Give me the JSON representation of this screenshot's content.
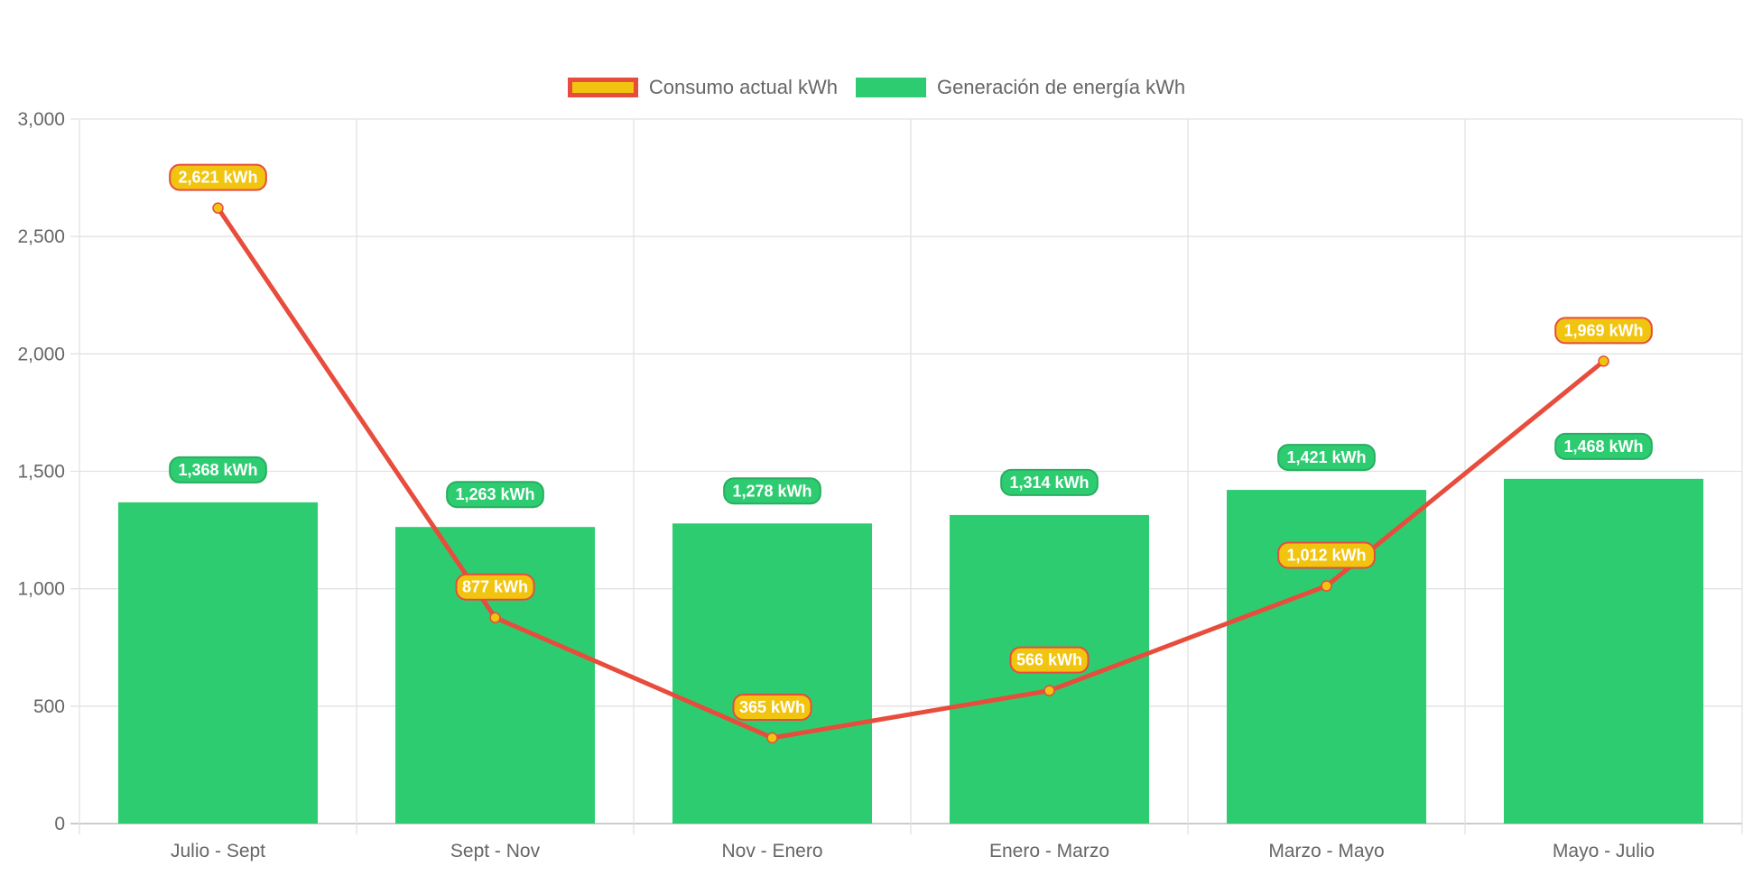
{
  "chart_data": {
    "type": "bar",
    "categories": [
      "Julio - Sept",
      "Sept - Nov",
      "Nov - Enero",
      "Enero - Marzo",
      "Marzo - Mayo",
      "Mayo - Julio"
    ],
    "series": [
      {
        "name": "Consumo actual kWh",
        "type": "line",
        "color": "#e74c3c",
        "fill": "#f1c40f",
        "values": [
          2621,
          877,
          365,
          566,
          1012,
          1969
        ],
        "labels": [
          "2,621 kWh",
          "877 kWh",
          "365 kWh",
          "566 kWh",
          "1,012 kWh",
          "1,969 kWh"
        ]
      },
      {
        "name": "Generación de energía kWh",
        "type": "bar",
        "color": "#2ecc71",
        "values": [
          1368,
          1263,
          1278,
          1314,
          1421,
          1468
        ],
        "labels": [
          "1,368 kWh",
          "1,263 kWh",
          "1,278 kWh",
          "1,314 kWh",
          "1,421 kWh",
          "1,468 kWh"
        ]
      }
    ],
    "yticks": [
      "0",
      "500",
      "1,000",
      "1,500",
      "2,000",
      "2,500",
      "3,000"
    ],
    "ylim": [
      0,
      3000
    ],
    "legend_position": "top",
    "grid": true
  }
}
